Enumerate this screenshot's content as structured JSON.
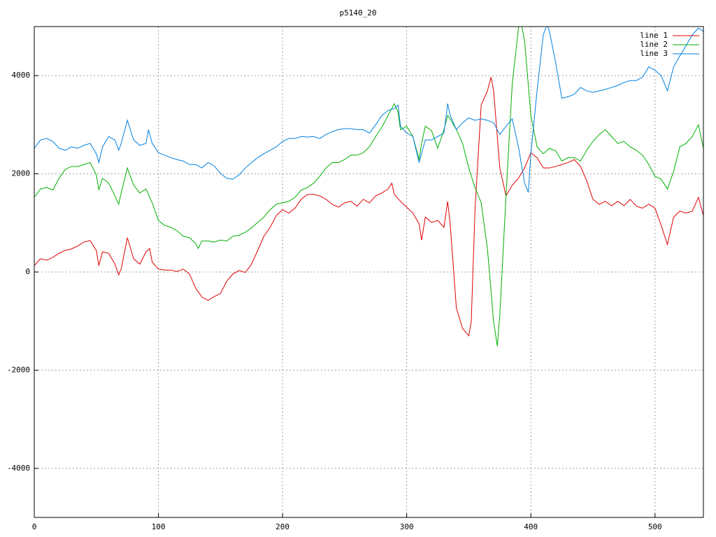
{
  "chart_data": {
    "type": "line",
    "title": "p5140_20",
    "xlim": [
      0,
      539
    ],
    "ylim": [
      -5000,
      5000
    ],
    "xticks": [
      0,
      100,
      200,
      300,
      400,
      500
    ],
    "yticks": [
      -4000,
      -2000,
      0,
      2000,
      4000
    ],
    "grid": true,
    "legend": "upper right",
    "series": [
      {
        "name": "line 1",
        "color": "#e00000",
        "x": [
          0,
          5,
          10,
          15,
          20,
          25,
          30,
          35,
          40,
          45,
          50,
          52,
          55,
          60,
          65,
          68,
          70,
          75,
          80,
          85,
          90,
          93,
          95,
          100,
          105,
          110,
          115,
          120,
          125,
          130,
          135,
          140,
          145,
          150,
          155,
          160,
          165,
          170,
          175,
          180,
          185,
          190,
          195,
          200,
          205,
          210,
          215,
          220,
          225,
          230,
          235,
          240,
          245,
          250,
          255,
          260,
          265,
          270,
          275,
          280,
          285,
          288,
          290,
          295,
          300,
          305,
          310,
          312,
          315,
          320,
          325,
          330,
          333,
          335,
          340,
          345,
          350,
          352,
          355,
          360,
          365,
          368,
          370,
          375,
          380,
          385,
          390,
          395,
          400,
          405,
          410,
          415,
          420,
          425,
          430,
          435,
          440,
          445,
          450,
          455,
          460,
          465,
          470,
          475,
          480,
          485,
          490,
          495,
          500,
          505,
          510,
          515,
          520,
          525,
          530,
          535,
          539
        ],
        "values": [
          130,
          270,
          240,
          300,
          380,
          440,
          470,
          530,
          610,
          640,
          440,
          130,
          410,
          380,
          160,
          -60,
          60,
          700,
          270,
          160,
          410,
          480,
          200,
          60,
          40,
          40,
          10,
          60,
          -40,
          -330,
          -510,
          -580,
          -500,
          -440,
          -190,
          -40,
          30,
          -10,
          160,
          440,
          730,
          910,
          1150,
          1270,
          1200,
          1300,
          1480,
          1580,
          1580,
          1550,
          1480,
          1380,
          1320,
          1410,
          1440,
          1340,
          1480,
          1410,
          1550,
          1610,
          1690,
          1810,
          1580,
          1440,
          1320,
          1200,
          980,
          650,
          1120,
          1010,
          1050,
          910,
          1440,
          980,
          -730,
          -1150,
          -1300,
          -1010,
          1270,
          3400,
          3690,
          3970,
          3690,
          2120,
          1550,
          1770,
          1910,
          2120,
          2430,
          2330,
          2120,
          2120,
          2150,
          2190,
          2230,
          2290,
          2150,
          1860,
          1480,
          1380,
          1440,
          1350,
          1440,
          1350,
          1480,
          1340,
          1300,
          1380,
          1300,
          950,
          560,
          1120,
          1240,
          1200,
          1240,
          1520,
          1150
        ]
      },
      {
        "name": "line 2",
        "color": "#00b000",
        "x": [
          0,
          5,
          10,
          15,
          20,
          25,
          30,
          35,
          40,
          45,
          50,
          52,
          55,
          60,
          65,
          68,
          70,
          75,
          80,
          85,
          90,
          95,
          100,
          105,
          110,
          115,
          120,
          125,
          130,
          132,
          135,
          140,
          145,
          150,
          155,
          160,
          165,
          170,
          175,
          180,
          185,
          190,
          195,
          200,
          205,
          210,
          215,
          220,
          225,
          230,
          235,
          240,
          245,
          250,
          255,
          260,
          265,
          270,
          275,
          280,
          285,
          290,
          293,
          295,
          300,
          305,
          310,
          312,
          315,
          320,
          325,
          330,
          333,
          335,
          340,
          345,
          350,
          355,
          360,
          365,
          370,
          373,
          375,
          380,
          385,
          390,
          392,
          395,
          400,
          405,
          410,
          415,
          420,
          425,
          430,
          435,
          440,
          445,
          450,
          455,
          460,
          465,
          470,
          475,
          480,
          485,
          490,
          495,
          500,
          505,
          510,
          515,
          520,
          525,
          530,
          535,
          539
        ],
        "values": [
          1520,
          1690,
          1720,
          1670,
          1910,
          2090,
          2150,
          2150,
          2190,
          2230,
          1980,
          1670,
          1910,
          1810,
          1550,
          1380,
          1610,
          2120,
          1770,
          1610,
          1690,
          1410,
          1050,
          950,
          910,
          840,
          730,
          700,
          580,
          480,
          630,
          630,
          610,
          650,
          630,
          730,
          750,
          810,
          900,
          1010,
          1120,
          1270,
          1380,
          1410,
          1440,
          1520,
          1670,
          1720,
          1810,
          1950,
          2120,
          2230,
          2230,
          2290,
          2380,
          2380,
          2430,
          2550,
          2760,
          2950,
          3190,
          3430,
          3260,
          2900,
          2970,
          2760,
          2290,
          2620,
          2970,
          2880,
          2520,
          2900,
          3190,
          3120,
          2900,
          2620,
          2120,
          1720,
          1410,
          480,
          -1010,
          -1510,
          -870,
          1550,
          3830,
          4970,
          5100,
          4700,
          3190,
          2550,
          2410,
          2520,
          2470,
          2260,
          2330,
          2330,
          2260,
          2480,
          2660,
          2800,
          2900,
          2760,
          2620,
          2660,
          2550,
          2480,
          2380,
          2190,
          1950,
          1890,
          1690,
          2050,
          2550,
          2620,
          2760,
          3000,
          2520
        ]
      },
      {
        "name": "line 3",
        "color": "#0080e0",
        "x": [
          0,
          5,
          10,
          15,
          20,
          25,
          30,
          35,
          40,
          45,
          50,
          52,
          55,
          60,
          65,
          68,
          70,
          75,
          80,
          85,
          90,
          92,
          95,
          100,
          105,
          110,
          115,
          120,
          125,
          130,
          135,
          140,
          145,
          150,
          155,
          160,
          165,
          170,
          175,
          180,
          185,
          190,
          195,
          200,
          205,
          210,
          215,
          220,
          225,
          230,
          235,
          240,
          245,
          250,
          255,
          260,
          265,
          270,
          275,
          280,
          285,
          290,
          293,
          295,
          300,
          305,
          310,
          315,
          320,
          325,
          330,
          333,
          335,
          340,
          345,
          350,
          355,
          360,
          365,
          370,
          375,
          380,
          385,
          390,
          395,
          398,
          400,
          405,
          410,
          413,
          415,
          420,
          425,
          430,
          435,
          440,
          445,
          450,
          455,
          460,
          465,
          470,
          475,
          480,
          485,
          490,
          495,
          500,
          505,
          510,
          515,
          520,
          525,
          530,
          535,
          539
        ],
        "values": [
          2520,
          2690,
          2720,
          2660,
          2520,
          2480,
          2550,
          2520,
          2580,
          2620,
          2410,
          2230,
          2550,
          2760,
          2690,
          2480,
          2620,
          3090,
          2690,
          2580,
          2620,
          2900,
          2620,
          2430,
          2380,
          2330,
          2290,
          2260,
          2190,
          2190,
          2120,
          2230,
          2160,
          2010,
          1910,
          1890,
          1980,
          2120,
          2230,
          2330,
          2410,
          2480,
          2550,
          2660,
          2720,
          2720,
          2760,
          2750,
          2760,
          2720,
          2800,
          2860,
          2900,
          2920,
          2920,
          2900,
          2900,
          2830,
          3000,
          3190,
          3290,
          3330,
          3400,
          2970,
          2830,
          2760,
          2230,
          2690,
          2690,
          2760,
          2830,
          3430,
          3190,
          2900,
          3040,
          3140,
          3090,
          3120,
          3090,
          3040,
          2800,
          2970,
          3120,
          2550,
          1810,
          1620,
          2410,
          3690,
          4830,
          5040,
          4900,
          4260,
          3540,
          3570,
          3620,
          3760,
          3690,
          3660,
          3690,
          3720,
          3760,
          3800,
          3860,
          3900,
          3900,
          3970,
          4180,
          4110,
          4000,
          3690,
          4180,
          4400,
          4610,
          4830,
          4970,
          4900
        ]
      }
    ]
  }
}
